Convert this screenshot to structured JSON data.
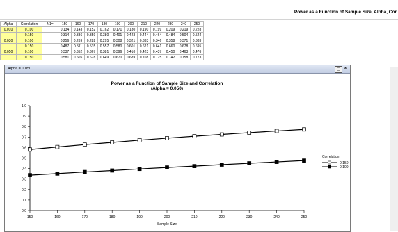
{
  "app": {
    "title": "Power as a Function of Sample Size, Alpha, Cor"
  },
  "table": {
    "headers": [
      "Alpha",
      "Correlation",
      "N1=",
      "150",
      "160",
      "170",
      "180",
      "190",
      "200",
      "210",
      "220",
      "230",
      "240",
      "250"
    ],
    "rows": [
      {
        "alpha": "0.010",
        "correlation": "0.100",
        "values": [
          "0.134",
          "0.143",
          "0.152",
          "0.162",
          "0.171",
          "0.180",
          "0.190",
          "0.199",
          "0.209",
          "0.219",
          "0.228"
        ]
      },
      {
        "alpha": "",
        "correlation": "0.150",
        "values": [
          "0.314",
          "0.336",
          "0.359",
          "0.380",
          "0.401",
          "0.423",
          "0.444",
          "0.464",
          "0.484",
          "0.504",
          "0.524"
        ]
      },
      {
        "alpha": "0.030",
        "correlation": "0.100",
        "values": [
          "0.256",
          "0.269",
          "0.282",
          "0.295",
          "0.308",
          "0.321",
          "0.333",
          "0.346",
          "0.358",
          "0.371",
          "0.383"
        ]
      },
      {
        "alpha": "",
        "correlation": "0.150",
        "values": [
          "0.487",
          "0.511",
          "0.535",
          "0.557",
          "0.580",
          "0.601",
          "0.621",
          "0.641",
          "0.660",
          "0.678",
          "0.695"
        ]
      },
      {
        "alpha": "0.050",
        "correlation": "0.100",
        "values": [
          "0.337",
          "0.352",
          "0.367",
          "0.381",
          "0.396",
          "0.410",
          "0.423",
          "0.437",
          "0.450",
          "0.463",
          "0.476"
        ]
      },
      {
        "alpha": "",
        "correlation": "0.150",
        "values": [
          "0.581",
          "0.605",
          "0.628",
          "0.649",
          "0.670",
          "0.689",
          "0.708",
          "0.725",
          "0.742",
          "0.758",
          "0.773"
        ]
      }
    ]
  },
  "window": {
    "title": "Alpha = 0.050"
  },
  "chart_data": {
    "type": "line",
    "title": "Power as a Function of Sample Size and Correlation",
    "subtitle": "(Alpha = 0.050)",
    "xlabel": "Sample Size",
    "ylabel": "",
    "x": [
      150,
      160,
      170,
      180,
      190,
      200,
      210,
      220,
      230,
      240,
      250
    ],
    "xlim": [
      150,
      250
    ],
    "ylim": [
      0.0,
      1.0
    ],
    "yticks": [
      "0.0",
      "0.1",
      "0.2",
      "0.3",
      "0.4",
      "0.5",
      "0.6",
      "0.7",
      "0.8",
      "0.9",
      "1.0"
    ],
    "grid": false,
    "legend": {
      "title": "Correlation",
      "position": "right"
    },
    "series": [
      {
        "name": "0.150",
        "marker": "open-square",
        "values": [
          0.581,
          0.605,
          0.628,
          0.649,
          0.67,
          0.689,
          0.708,
          0.725,
          0.742,
          0.758,
          0.773
        ]
      },
      {
        "name": "0.100",
        "marker": "filled-square",
        "values": [
          0.337,
          0.352,
          0.367,
          0.381,
          0.396,
          0.41,
          0.423,
          0.437,
          0.45,
          0.463,
          0.476
        ]
      }
    ]
  }
}
